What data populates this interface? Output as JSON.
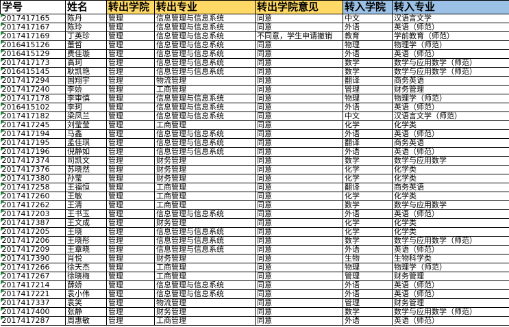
{
  "header_colors": {
    "out": "#FFD966",
    "in": "#9BC2E6",
    "error_marker": "#1E8A3A"
  },
  "columns": [
    "学号",
    "姓名",
    "转出学院",
    "转出专业",
    "转出学院意见",
    "转入学院",
    "转入专业"
  ],
  "rows": [
    [
      "2017417165",
      "陈丹",
      "管理",
      "信息管理与信息系统",
      "同意",
      "中文",
      "汉语言文学"
    ],
    [
      "2017417167",
      "陈玲",
      "管理",
      "信息管理与信息系统",
      "同意",
      "外语",
      "英语（师范）"
    ],
    [
      "2017417169",
      "丁英珍",
      "管理",
      "信息管理与信息系统",
      "不同意，学生申请撤销",
      "教育",
      "学前教育（师范）"
    ],
    [
      "2016415126",
      "董哲",
      "管理",
      "信息管理与信息系统",
      "同意",
      "物理",
      "物理学（师范）"
    ],
    [
      "2016415129",
      "费佳璇",
      "管理",
      "信息管理与信息系统",
      "同意",
      "外语",
      "英语（师范）"
    ],
    [
      "2017417173",
      "高珂",
      "管理",
      "信息管理与信息系统",
      "同意",
      "数学",
      "数学与应用数学（师范）"
    ],
    [
      "2016415145",
      "耿凯艳",
      "管理",
      "信息管理与信息系统",
      "同意",
      "数学",
      "数学与应用数学（师范）"
    ],
    [
      "2017417294",
      "国翔宇",
      "管理",
      "物流管理",
      "同意",
      "翻译",
      "商务英语"
    ],
    [
      "2017417240",
      "李娇",
      "管理",
      "工商管理",
      "同意",
      "管理",
      "财务管理"
    ],
    [
      "2017417178",
      "李审慎",
      "管理",
      "信息管理与信息系统",
      "同意",
      "物理",
      "物理学（师范）"
    ],
    [
      "2016415102",
      "李珂",
      "管理",
      "信息管理与信息系统",
      "同意",
      "外语",
      "英语（师范）"
    ],
    [
      "2017417182",
      "梁凤兰",
      "管理",
      "信息管理与信息系统",
      "同意",
      "中文",
      "汉语言文学（师范）"
    ],
    [
      "2017417245",
      "刘莹莹",
      "管理",
      "工商管理",
      "同意",
      "化学",
      "化学类"
    ],
    [
      "2017417194",
      "马鑫",
      "管理",
      "信息管理与信息系统",
      "同意",
      "外语",
      "英语（师范）"
    ],
    [
      "2017417195",
      "孟佳琪",
      "管理",
      "信息管理与信息系统",
      "同意",
      "翻译",
      "商务英语"
    ],
    [
      "2017417196",
      "倪静如",
      "管理",
      "信息管理与信息系统",
      "同意",
      "外语",
      "英语（师范）"
    ],
    [
      "2017417374",
      "司凯文",
      "管理",
      "财务管理",
      "同意",
      "数学",
      "数学与应用数学"
    ],
    [
      "2017417376",
      "苏晓然",
      "管理",
      "财务管理",
      "同意",
      "化学",
      "化学类"
    ],
    [
      "2017417380",
      "孙莹",
      "管理",
      "财务管理",
      "同意",
      "化学",
      "化学类"
    ],
    [
      "2017417258",
      "王福恒",
      "管理",
      "工商管理",
      "同意",
      "翻译",
      "商务英语"
    ],
    [
      "2017417260",
      "王敏",
      "管理",
      "工商管理",
      "同意",
      "化学",
      "化学类"
    ],
    [
      "2017417262",
      "王清",
      "管理",
      "工商管理",
      "同意",
      "数学",
      "数学与应用数学"
    ],
    [
      "2017417203",
      "王书玉",
      "管理",
      "信息管理与信息系统",
      "同意",
      "外语",
      "英语（师范）"
    ],
    [
      "2017417387",
      "王文成",
      "管理",
      "财务管理",
      "同意",
      "化学",
      "化学类"
    ],
    [
      "2017417205",
      "王晓",
      "管理",
      "信息管理与信息系统",
      "同意",
      "化学",
      "化学类"
    ],
    [
      "2017417206",
      "王晓彤",
      "管理",
      "信息管理与信息系统",
      "同意",
      "数学",
      "数学与应用数学（师范）"
    ],
    [
      "2017417209",
      "王章晓",
      "管理",
      "信息管理与信息系统",
      "同意",
      "外语",
      "英语（师范）"
    ],
    [
      "2017417390",
      "肖悦",
      "管理",
      "财务管理",
      "同意",
      "生物",
      "生物科学类"
    ],
    [
      "2017417266",
      "徐天杰",
      "管理",
      "工商管理",
      "同意",
      "物理",
      "物理学（师范）"
    ],
    [
      "2017417267",
      "徐晓梅",
      "管理",
      "工商管理",
      "同意",
      "管理",
      "财务管理"
    ],
    [
      "2017417214",
      "薛娇",
      "管理",
      "信息管理与信息系统",
      "同意",
      "外语",
      "英语（师范）"
    ],
    [
      "2017417221",
      "袁小伟",
      "管理",
      "信息管理与信息系统",
      "同意",
      "外语",
      "英语（师范）"
    ],
    [
      "2017417337",
      "袁笑",
      "管理",
      "物流管理",
      "同意",
      "管理",
      "财务管理"
    ],
    [
      "2017417400",
      "张静",
      "管理",
      "财务管理",
      "同意",
      "数学",
      "数学与应用数学（师范）"
    ],
    [
      "2017417287",
      "周惠敏",
      "管理",
      "工商管理",
      "同意",
      "外语",
      "英语（师范）"
    ]
  ]
}
